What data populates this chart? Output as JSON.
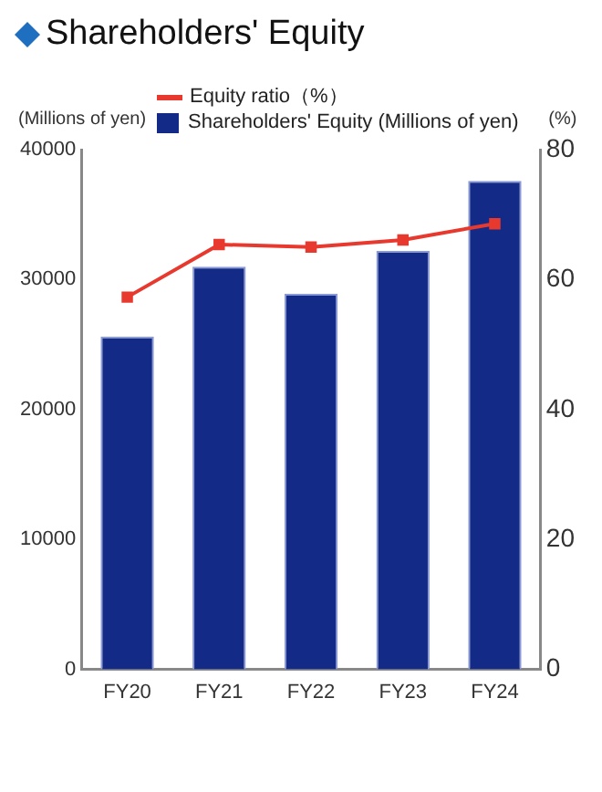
{
  "chart_data": {
    "type": "bar",
    "title": "Shareholders' Equity",
    "ylabel": "(Millions of yen)",
    "y2label": "(%)",
    "categories": [
      "FY20",
      "FY21",
      "FY22",
      "FY23",
      "FY24"
    ],
    "series": [
      {
        "name": "Equity ratio（%）",
        "type": "line",
        "axis": "y2",
        "color": "#e8392f",
        "marker": "square",
        "values": [
          57.3,
          65.4,
          65.0,
          66.1,
          68.6
        ]
      },
      {
        "name": "Shareholders' Equity (Millions of yen)",
        "color": "#132a87",
        "values": [
          25600,
          31000,
          28900,
          32200,
          37600
        ]
      }
    ],
    "ylim": [
      0,
      40000
    ],
    "yticks": [
      0,
      10000,
      20000,
      30000,
      40000
    ],
    "y2lim": [
      0,
      80
    ],
    "y2ticks": [
      0,
      20,
      40,
      60,
      80
    ],
    "grid": false,
    "legend": "top"
  }
}
